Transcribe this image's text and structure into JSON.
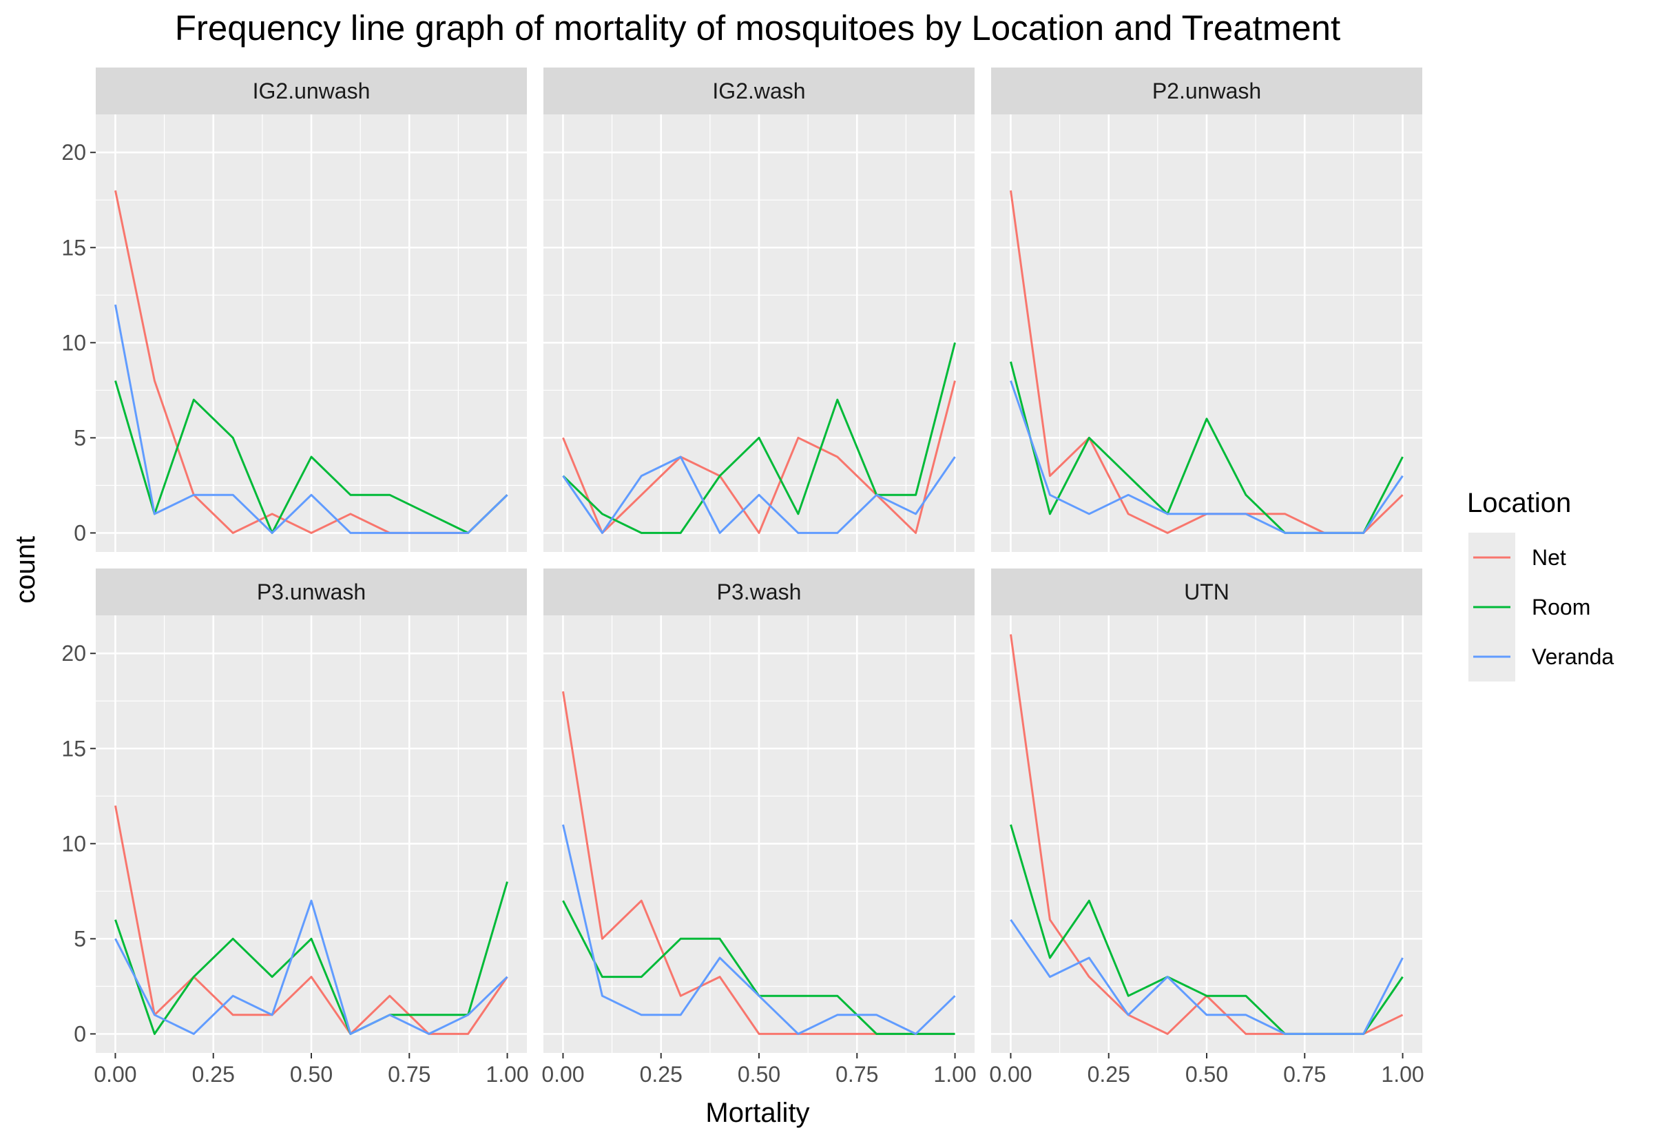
{
  "chart_data": {
    "type": "line",
    "title": "Frequency line graph of mortality of mosquitoes by Location and Treatment",
    "xlabel": "Mortality",
    "ylabel": "count",
    "x": [
      0,
      0.1,
      0.2,
      0.3,
      0.4,
      0.5,
      0.6,
      0.7,
      0.8,
      0.9,
      1.0
    ],
    "xlim": [
      -0.05,
      1.05
    ],
    "ylim": [
      -1,
      22
    ],
    "x_ticks": [
      0,
      0.25,
      0.5,
      0.75,
      1.0
    ],
    "x_tick_labels": [
      "0.00",
      "0.25",
      "0.50",
      "0.75",
      "1.00"
    ],
    "y_ticks": [
      0,
      5,
      10,
      15,
      20
    ],
    "y_tick_labels": [
      "0",
      "5",
      "10",
      "15",
      "20"
    ],
    "grid": true,
    "legend": {
      "title": "Location",
      "placement": "right",
      "entries": [
        {
          "name": "Net",
          "color": "#F8766D"
        },
        {
          "name": "Room",
          "color": "#00BA38"
        },
        {
          "name": "Veranda",
          "color": "#619CFF"
        }
      ]
    },
    "facets": [
      {
        "name": "IG2.unwash",
        "series": [
          {
            "name": "Net",
            "values": [
              18,
              8,
              2,
              0,
              1,
              0,
              1,
              0,
              0,
              0,
              2
            ]
          },
          {
            "name": "Room",
            "values": [
              8,
              1,
              7,
              5,
              0,
              4,
              2,
              2,
              1,
              0,
              2
            ]
          },
          {
            "name": "Veranda",
            "values": [
              12,
              1,
              2,
              2,
              0,
              2,
              0,
              0,
              0,
              0,
              2
            ]
          }
        ]
      },
      {
        "name": "IG2.wash",
        "series": [
          {
            "name": "Net",
            "values": [
              5,
              0,
              2,
              4,
              3,
              0,
              5,
              4,
              2,
              0,
              8
            ]
          },
          {
            "name": "Room",
            "values": [
              3,
              1,
              0,
              0,
              3,
              5,
              1,
              7,
              2,
              2,
              10
            ]
          },
          {
            "name": "Veranda",
            "values": [
              3,
              0,
              3,
              4,
              0,
              2,
              0,
              0,
              2,
              1,
              4
            ]
          }
        ]
      },
      {
        "name": "P2.unwash",
        "series": [
          {
            "name": "Net",
            "values": [
              18,
              3,
              5,
              1,
              0,
              1,
              1,
              1,
              0,
              0,
              2
            ]
          },
          {
            "name": "Room",
            "values": [
              9,
              1,
              5,
              3,
              1,
              6,
              2,
              0,
              0,
              0,
              4
            ]
          },
          {
            "name": "Veranda",
            "values": [
              8,
              2,
              1,
              2,
              1,
              1,
              1,
              0,
              0,
              0,
              3
            ]
          }
        ]
      },
      {
        "name": "P3.unwash",
        "series": [
          {
            "name": "Net",
            "values": [
              12,
              1,
              3,
              1,
              1,
              3,
              0,
              2,
              0,
              0,
              3
            ]
          },
          {
            "name": "Room",
            "values": [
              6,
              0,
              3,
              5,
              3,
              5,
              0,
              1,
              1,
              1,
              8
            ]
          },
          {
            "name": "Veranda",
            "values": [
              5,
              1,
              0,
              2,
              1,
              7,
              0,
              1,
              0,
              1,
              3
            ]
          }
        ]
      },
      {
        "name": "P3.wash",
        "series": [
          {
            "name": "Net",
            "values": [
              18,
              5,
              7,
              2,
              3,
              0,
              0,
              0,
              0,
              0,
              0
            ]
          },
          {
            "name": "Room",
            "values": [
              7,
              3,
              3,
              5,
              5,
              2,
              2,
              2,
              0,
              0,
              0
            ]
          },
          {
            "name": "Veranda",
            "values": [
              11,
              2,
              1,
              1,
              4,
              2,
              0,
              1,
              1,
              0,
              2
            ]
          }
        ]
      },
      {
        "name": "UTN",
        "series": [
          {
            "name": "Net",
            "values": [
              21,
              6,
              3,
              1,
              0,
              2,
              0,
              0,
              0,
              0,
              1
            ]
          },
          {
            "name": "Room",
            "values": [
              11,
              4,
              7,
              2,
              3,
              2,
              2,
              0,
              0,
              0,
              3
            ]
          },
          {
            "name": "Veranda",
            "values": [
              6,
              3,
              4,
              1,
              3,
              1,
              1,
              0,
              0,
              0,
              4
            ]
          }
        ]
      }
    ]
  }
}
